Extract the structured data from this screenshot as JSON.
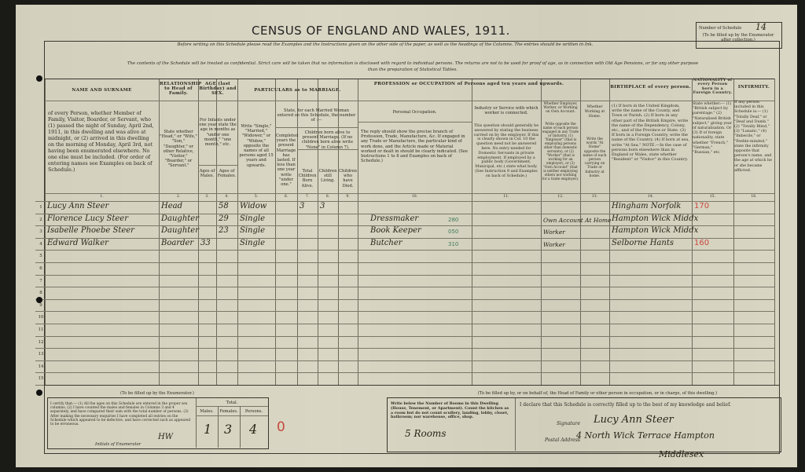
{
  "header": {
    "title": "CENSUS OF ENGLAND AND WALES, 1911.",
    "instruction": "Before writing on this Schedule please read the Examples and the Instructions given on the other side of the paper, as well as the headings of the Columns. The entries should be written in Ink.",
    "confidential_1": "The contents of the Schedule will be treated as confidential. Strict care will be taken that no information is disclosed with regard to individual persons. The returns are not to be used for proof of age, as in connection with Old Age Pensions, or for any other purpose",
    "confidential_2": "than the preparation of Statistical Tables.",
    "schedule_label": "Number of Schedule",
    "schedule_note": "(To be filled up by the Enumerator after collection.)",
    "schedule_number": "14"
  },
  "columns": {
    "name_head": "NAME AND SURNAME",
    "name_desc": "of every Person, whether Member of Family, Visitor, Boarder, or Servant, who (1) passed the night of Sunday, April 2nd, 1911, in this dwelling and was alive at midnight, or (2) arrived in this dwelling on the morning of Monday, April 3rd, not having been enumerated elsewhere. No one else must be included. (For order of entering names see Examples on back of Schedule.)",
    "rel_head": "RELATIONSHIP to Head of Family.",
    "rel_desc": "State whether \"Head,\" or \"Wife,\" \"Son,\" \"Daughter,\" or other Relative, \"Visitor,\" \"Boarder,\" or \"Servant.\"",
    "age_head": "AGE (last Birthday) and SEX.",
    "age_desc": "For Infants under one year state the age in months as \"under one month,\" \"one month,\" etc.",
    "age_males": "Ages of Males.",
    "age_females": "Ages of Females.",
    "mar_head": "PARTICULARS as to MARRIAGE.",
    "mar_desc": "Write \"Single,\" \"Married,\" \"Widower,\" or \"Widow,\" opposite the names of all persons aged 15 years and upwards.",
    "mar_woman": "State, for each Married Woman entered on this Schedule, the number of :—",
    "mar_years": "Completed years the present Marriage has lasted. If less than one year write \"under one.\"",
    "mar_children": "Children born alive to present Marriage. (If no children born alive write \"None\" in Column 7).",
    "mar_total": "Total Children Born Alive.",
    "mar_living": "Children still Living.",
    "mar_died": "Children who have Died.",
    "occ_head": "PROFESSION or OCCUPATION of Persons aged ten years and upwards.",
    "occ_personal": "Personal Occupation.",
    "occ_desc": "The reply should show the precise branch of Profession, Trade, Manufacture, &c. If engaged in any Trade or Manufacture, the particular kind of work done, and the Article made or Material worked or dealt in should be clearly indicated. (See Instructions 1 to 8 and Examples on back of Schedule.)",
    "ind_head": "Industry or Service with which worker is connected.",
    "ind_desc": "This question should generally be answered by stating the business carried on by the employer. If this is clearly shown in Col. 10 the question need not be answered here. No entry needed for Domestic Servants in private employment. If employed by a public body (Government, Municipal, etc.) state what body. (See Instruction 9 and Examples on back of Schedule.)",
    "emp_head": "Whether Employer, Worker, or Working on Own Account.",
    "emp_desc": "Write opposite the name of each person engaged in any Trade or Industry, (1) \"Employer\" (that is employing persons other than domestic servants), or (2) \"Worker\" (that is working for an employer), or (3) \"Own Account\" (that is neither employing others nor working for a trade employer).",
    "home_head": "Whether Working at Home.",
    "home_desc": "Write the words \"At Home\" opposite the name of each person carrying on Trade or Industry at home.",
    "birth_head": "BIRTHPLACE of every person.",
    "birth_desc": "(1) If born in the United Kingdom, write the name of the County, and Town or Parish. (2) If born in any other part of the British Empire, write the name of the Dependency, Colony, etc., and of the Province or State. (3) If born in a Foreign Country, write the name of the Country. (4) If born at sea, write \"At Sea.\" NOTE.—In the case of persons born elsewhere than in England or Wales, state whether \"Resident\" or \"Visitor\" in this Country.",
    "nat_head": "NATIONALITY of every Person born in a Foreign Country.",
    "nat_desc": "State whether:— (1) \"British subject by parentage.\" (2) \"Naturalised British subject,\" giving year of naturalisation. Or (3) If of foreign nationality, state whether \"French,\" \"German,\" \"Russian,\" etc.",
    "inf_head": "INFIRMITY.",
    "inf_desc": "If any person included in this Schedule is:— (1) \"Totally Deaf,\" or \"Deaf and Dumb.\" (2) \"Totally Blind,\" (3) \"Lunatic,\" (4) \"Imbecile,\" or \"Feeble-minded,\" state the infirmity opposite that person's name, and the age at which he or she became afflicted.",
    "numbers": [
      "1.",
      "2.",
      "3.",
      "4.",
      "5.",
      "6.",
      "7.",
      "8.",
      "9.",
      "10.",
      "11.",
      "12.",
      "13.",
      "14.",
      "15.",
      "16."
    ]
  },
  "rows": [
    {
      "n": "1",
      "name": "Lucy Ann Steer",
      "rel": "Head",
      "male": "",
      "female": "58",
      "mar": "Widow",
      "years": "",
      "total": "3",
      "living": "3",
      "died": "",
      "occ": "",
      "code": "",
      "ind": "",
      "emp": "",
      "home": "",
      "birth": "Hingham Norfolk",
      "red": "170"
    },
    {
      "n": "2",
      "name": "Florence Lucy Steer",
      "rel": "Daughter",
      "male": "",
      "female": "29",
      "mar": "Single",
      "years": "",
      "total": "",
      "living": "",
      "died": "",
      "occ": "Dressmaker",
      "code": "280",
      "ind": "",
      "emp": "Own Account At Home",
      "home": "",
      "birth": "Hampton Wick Middx",
      "red": ""
    },
    {
      "n": "3",
      "name": "Isabelle Phoebe Steer",
      "rel": "Daughter",
      "male": "",
      "female": "23",
      "mar": "Single",
      "years": "",
      "total": "",
      "living": "",
      "died": "",
      "occ": "Book Keeper",
      "code": "050",
      "ind": "",
      "emp": "Worker",
      "home": "",
      "birth": "Hampton Wick Middx",
      "red": ""
    },
    {
      "n": "4",
      "name": "Edward Walker",
      "rel": "Boarder",
      "male": "33",
      "female": "",
      "mar": "Single",
      "years": "",
      "total": "",
      "living": "",
      "died": "",
      "occ": "Butcher",
      "code": "310",
      "ind": "",
      "emp": "Worker",
      "home": "",
      "birth": "Selborne Hants",
      "red": "160"
    }
  ],
  "row_numbers": [
    "1",
    "2",
    "3",
    "4",
    "5",
    "6",
    "7",
    "8",
    "9",
    "10",
    "11",
    "12",
    "13",
    "14",
    "15"
  ],
  "enumerator": {
    "heading": "(To be filled up by the Enumerator.)",
    "certify": "I certify that:— (1) All the ages on this Schedule are entered in the proper sex columns. (2) I have counted the males and females in Columns 3 and 4 separately, and have compared their sum with the total number of persons. (3) After making the necessary enquiries I have completed all entries on the Schedule which appeared to be defective, and have corrected such as appeared to be erroneous.",
    "initials_label": "Initials of Enumerator",
    "initials": "HW",
    "total_label": "Total.",
    "males_label": "Males.",
    "females_label": "Females.",
    "persons_label": "Persons.",
    "males": "1",
    "females": "3",
    "persons": "4",
    "red_mark": "0"
  },
  "household": {
    "heading": "(To be filled up by, or on behalf of, the Head of Family or other person in occupation, or in charge, of this dwelling.)",
    "rooms_desc": "Write below the Number of Rooms in this Dwelling (House, Tenement, or Apartment). Count the kitchen as a room but do not count scullery, landing, lobby, closet, bathroom; nor warehouse, office, shop.",
    "rooms": "5 Rooms",
    "declare": "I declare that this Schedule is correctly filled up to the best of my knowledge and belief.",
    "signature_label": "Signature",
    "signature": "Lucy Ann Steer",
    "address_label": "Postal Address",
    "address_1": "4 North Wick Terrace Hampton",
    "address_2": "Middlesex"
  }
}
